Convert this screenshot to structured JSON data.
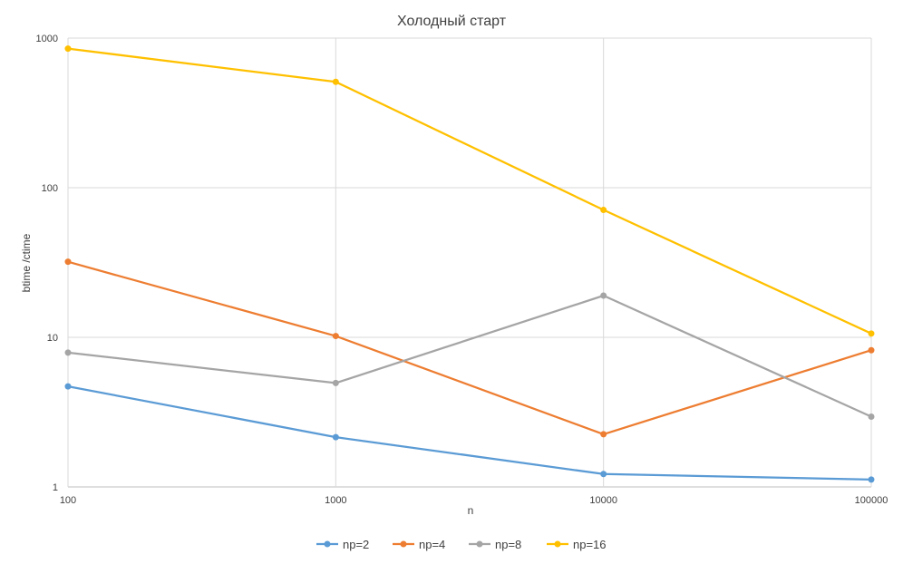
{
  "chart_data": {
    "type": "line",
    "title": "Холодный старт",
    "xlabel": "n",
    "ylabel": "btime /ctime",
    "x_scale": "log",
    "y_scale": "log",
    "x": [
      100,
      1000,
      10000,
      100000
    ],
    "x_tick_labels": [
      "100",
      "1000",
      "10000",
      "100000"
    ],
    "y_ticks": [
      1,
      10,
      100,
      1000
    ],
    "y_tick_labels": [
      "1",
      "10",
      "100",
      "1000"
    ],
    "ylim": [
      1,
      1000
    ],
    "grid": true,
    "legend_position": "bottom",
    "series": [
      {
        "name": "np=2",
        "color": "#5b9bd5",
        "values": [
          4.7,
          2.15,
          1.22,
          1.12
        ]
      },
      {
        "name": "np=4",
        "color": "#ed7d31",
        "values": [
          32,
          10.2,
          2.25,
          8.2
        ]
      },
      {
        "name": "np=8",
        "color": "#a5a5a5",
        "values": [
          7.9,
          4.95,
          19,
          2.95
        ]
      },
      {
        "name": "np=16",
        "color": "#ffc000",
        "values": [
          850,
          510,
          71,
          10.6
        ]
      }
    ]
  }
}
